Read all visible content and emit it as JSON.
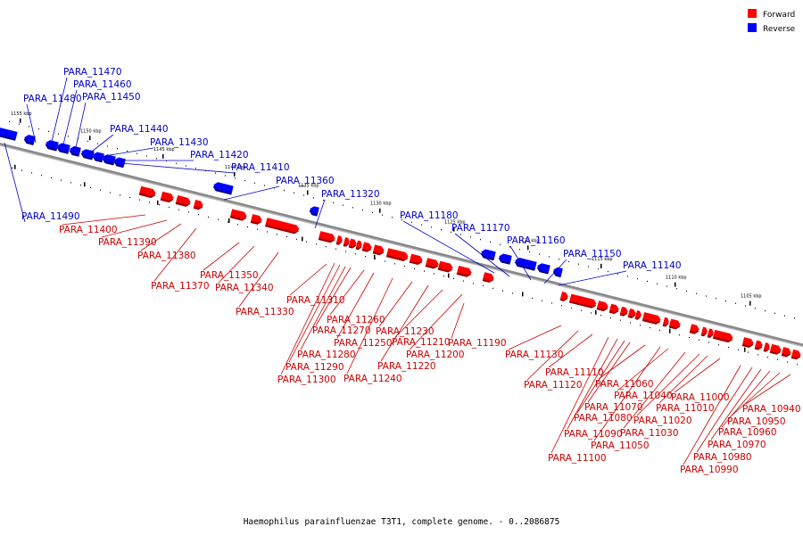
{
  "caption": "Haemophilus parainfluenzae T3T1, complete genome. - 0..2086875",
  "legend": [
    {
      "label": "Forward",
      "color": "#ff0000"
    },
    {
      "label": "Reverse",
      "color": "#0000ff"
    }
  ],
  "colors": {
    "forward": "#ff0000",
    "reverse": "#0000ff",
    "forward_label": "#cc0000",
    "reverse_label": "#0000cc",
    "backbone": "#888888"
  },
  "kbp_markers": [
    "1155 kbp",
    "1150 kbp",
    "1145 kbp",
    "1140 kbp",
    "1135 kbp",
    "1130 kbp",
    "1125 kbp",
    "1120 kbp",
    "1115 kbp",
    "1110 kbp",
    "1105 kbp"
  ],
  "genes": [
    {
      "name": "PARA_11490",
      "strand": "reverse"
    },
    {
      "name": "PARA_11480",
      "strand": "reverse"
    },
    {
      "name": "PARA_11470",
      "strand": "reverse"
    },
    {
      "name": "PARA_11460",
      "strand": "reverse"
    },
    {
      "name": "PARA_11450",
      "strand": "reverse"
    },
    {
      "name": "PARA_11440",
      "strand": "reverse"
    },
    {
      "name": "PARA_11430",
      "strand": "reverse"
    },
    {
      "name": "PARA_11420",
      "strand": "reverse"
    },
    {
      "name": "PARA_11410",
      "strand": "reverse"
    },
    {
      "name": "PARA_11400",
      "strand": "forward"
    },
    {
      "name": "PARA_11390",
      "strand": "forward"
    },
    {
      "name": "PARA_11380",
      "strand": "forward"
    },
    {
      "name": "PARA_11370",
      "strand": "forward"
    },
    {
      "name": "PARA_11360",
      "strand": "reverse"
    },
    {
      "name": "PARA_11350",
      "strand": "forward"
    },
    {
      "name": "PARA_11340",
      "strand": "forward"
    },
    {
      "name": "PARA_11330",
      "strand": "forward"
    },
    {
      "name": "PARA_11320",
      "strand": "reverse"
    },
    {
      "name": "PARA_11310",
      "strand": "forward"
    },
    {
      "name": "PARA_11300",
      "strand": "forward"
    },
    {
      "name": "PARA_11290",
      "strand": "forward"
    },
    {
      "name": "PARA_11280",
      "strand": "forward"
    },
    {
      "name": "PARA_11270",
      "strand": "forward"
    },
    {
      "name": "PARA_11260",
      "strand": "forward"
    },
    {
      "name": "PARA_11250",
      "strand": "forward"
    },
    {
      "name": "PARA_11240",
      "strand": "forward"
    },
    {
      "name": "PARA_11230",
      "strand": "forward"
    },
    {
      "name": "PARA_11220",
      "strand": "forward"
    },
    {
      "name": "PARA_11210",
      "strand": "forward"
    },
    {
      "name": "PARA_11200",
      "strand": "forward"
    },
    {
      "name": "PARA_11190",
      "strand": "forward"
    },
    {
      "name": "PARA_11180",
      "strand": "reverse"
    },
    {
      "name": "PARA_11170",
      "strand": "reverse"
    },
    {
      "name": "PARA_11160",
      "strand": "reverse"
    },
    {
      "name": "PARA_11150",
      "strand": "reverse"
    },
    {
      "name": "PARA_11140",
      "strand": "reverse"
    },
    {
      "name": "PARA_11130",
      "strand": "forward"
    },
    {
      "name": "PARA_11120",
      "strand": "forward"
    },
    {
      "name": "PARA_11110",
      "strand": "forward"
    },
    {
      "name": "PARA_11100",
      "strand": "forward"
    },
    {
      "name": "PARA_11090",
      "strand": "forward"
    },
    {
      "name": "PARA_11080",
      "strand": "forward"
    },
    {
      "name": "PARA_11070",
      "strand": "forward"
    },
    {
      "name": "PARA_11060",
      "strand": "forward"
    },
    {
      "name": "PARA_11050",
      "strand": "forward"
    },
    {
      "name": "PARA_11040",
      "strand": "forward"
    },
    {
      "name": "PARA_11030",
      "strand": "forward"
    },
    {
      "name": "PARA_11020",
      "strand": "forward"
    },
    {
      "name": "PARA_11010",
      "strand": "forward"
    },
    {
      "name": "PARA_11000",
      "strand": "forward"
    },
    {
      "name": "PARA_10990",
      "strand": "forward"
    },
    {
      "name": "PARA_10980",
      "strand": "forward"
    },
    {
      "name": "PARA_10970",
      "strand": "forward"
    },
    {
      "name": "PARA_10960",
      "strand": "forward"
    },
    {
      "name": "PARA_10950",
      "strand": "forward"
    },
    {
      "name": "PARA_10940",
      "strand": "forward"
    }
  ]
}
